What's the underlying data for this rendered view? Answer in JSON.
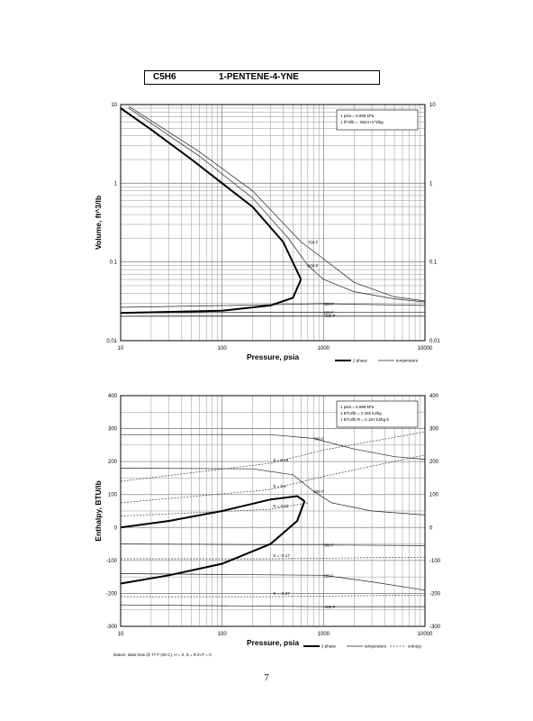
{
  "header": {
    "formula": "C5H6",
    "compound": "1-PENTENE-4-YNE"
  },
  "page_number": "7",
  "chart_data": [
    {
      "type": "line",
      "xscale": "log",
      "yscale": "log",
      "xlim": [
        10,
        10000
      ],
      "ylim": [
        0.01,
        10
      ],
      "xlabel": "Pressure,  psia",
      "ylabel": "Volume, ft^3/lb",
      "xticks": [
        "10",
        "100",
        "1000",
        "10000"
      ],
      "yticks": [
        "0.01",
        "0.1",
        "1",
        "10"
      ],
      "grid": true,
      "notes": [
        "1 psia  =  6.895 kPa",
        "1 ft^3/lb  =  .0624 m^3/kg"
      ],
      "legend": [
        "2 phase",
        "temperature"
      ],
      "dome": {
        "name": "2 phase",
        "upper": [
          [
            10,
            9.0
          ],
          [
            20,
            4.8
          ],
          [
            50,
            2.0
          ],
          [
            100,
            1.0
          ],
          [
            200,
            0.5
          ],
          [
            400,
            0.18
          ],
          [
            600,
            0.06
          ]
        ],
        "lower": [
          [
            10,
            0.0225
          ],
          [
            100,
            0.024
          ],
          [
            300,
            0.028
          ],
          [
            500,
            0.035
          ],
          [
            600,
            0.06
          ]
        ]
      },
      "isotherms": [
        {
          "label": "700 F",
          "points": [
            [
              12,
              9.5
            ],
            [
              60,
              2.5
            ],
            [
              200,
              0.8
            ],
            [
              600,
              0.18
            ],
            [
              1000,
              0.11
            ],
            [
              2000,
              0.055
            ],
            [
              5000,
              0.036
            ],
            [
              10000,
              0.032
            ]
          ]
        },
        {
          "label": "500 F",
          "points": [
            [
              12,
              9.0
            ],
            [
              60,
              2.2
            ],
            [
              200,
              0.65
            ],
            [
              450,
              0.2
            ],
            [
              700,
              0.09
            ],
            [
              1000,
              0.06
            ],
            [
              2000,
              0.042
            ],
            [
              5000,
              0.034
            ],
            [
              10000,
              0.031
            ]
          ]
        },
        {
          "label": "300 F",
          "points": [
            [
              10,
              0.0265
            ],
            [
              1000,
              0.0295
            ],
            [
              10000,
              0.028
            ]
          ]
        },
        {
          "label": "100 F",
          "points": [
            [
              10,
              0.0225
            ],
            [
              1000,
              0.023
            ],
            [
              10000,
              0.0228
            ]
          ]
        },
        {
          "label": "-100 F",
          "points": [
            [
              10,
              0.0205
            ],
            [
              1000,
              0.0208
            ],
            [
              10000,
              0.0208
            ]
          ]
        }
      ]
    },
    {
      "type": "line",
      "xscale": "log",
      "xlim": [
        10,
        10000
      ],
      "ylim": [
        -300,
        400
      ],
      "xlabel": "Pressure,  psia",
      "ylabel": "Enthalpy, BTU/lb",
      "xticks": [
        "10",
        "100",
        "1000",
        "10000"
      ],
      "yticks": [
        "400",
        "300",
        "200",
        "100",
        "0",
        "-100",
        "-200",
        "-300"
      ],
      "grid": true,
      "notes": [
        "1 psia  =  6.895 kPa",
        "1 BTU/lb  =  2.326 kJ/kg",
        "1 BTU/lb R  =  4.187 kJ/kg K"
      ],
      "legend": [
        "2 phase",
        "temperature",
        "entropy"
      ],
      "footnote": "Datum: Ideal Gas @ 77 F (25 C),  H = 0,  S = R ln P = 0",
      "dome": {
        "name": "2 phase",
        "upper": [
          [
            10,
            0
          ],
          [
            30,
            20
          ],
          [
            100,
            50
          ],
          [
            300,
            85
          ],
          [
            550,
            95
          ],
          [
            650,
            80
          ]
        ],
        "lower": [
          [
            10,
            -170
          ],
          [
            30,
            -145
          ],
          [
            100,
            -110
          ],
          [
            300,
            -50
          ],
          [
            550,
            20
          ],
          [
            650,
            80
          ]
        ]
      },
      "isotherms": [
        {
          "label": "700 F",
          "points": [
            [
              10,
              282
            ],
            [
              300,
              282
            ],
            [
              800,
              270
            ],
            [
              2000,
              238
            ],
            [
              5000,
              215
            ],
            [
              10000,
              207
            ]
          ]
        },
        {
          "label": "500 F",
          "points": [
            [
              10,
              180
            ],
            [
              200,
              178
            ],
            [
              500,
              160
            ],
            [
              800,
              110
            ],
            [
              1200,
              75
            ],
            [
              3000,
              50
            ],
            [
              10000,
              38
            ]
          ]
        },
        {
          "label": "300 F",
          "points": [
            [
              10,
              -50
            ],
            [
              1000,
              -53
            ],
            [
              10000,
              -55
            ]
          ]
        },
        {
          "label": "100 F",
          "points": [
            [
              10,
              -140
            ],
            [
              1000,
              -145
            ],
            [
              3000,
              -165
            ],
            [
              10000,
              -190
            ]
          ]
        },
        {
          "label": "-100 F",
          "points": [
            [
              10,
              -235
            ],
            [
              1000,
              -240
            ],
            [
              10000,
              -240
            ]
          ]
        }
      ],
      "entropy": [
        {
          "label": "S = 0.18",
          "points": [
            [
              10,
              140
            ],
            [
              300,
              195
            ],
            [
              1000,
              235
            ],
            [
              10000,
              290
            ]
          ]
        },
        {
          "label": "S = 0.1",
          "points": [
            [
              10,
              75
            ],
            [
              300,
              115
            ],
            [
              1000,
              155
            ],
            [
              10000,
              220
            ]
          ]
        },
        {
          "label": "S = 0.02",
          "points": [
            [
              10,
              35
            ],
            [
              300,
              55
            ],
            [
              700,
              75
            ]
          ]
        },
        {
          "label": "S = -0.17",
          "points": [
            [
              10,
              -95
            ],
            [
              300,
              -95
            ],
            [
              10000,
              -90
            ]
          ]
        },
        {
          "label": "S = -0.27",
          "points": [
            [
              10,
              -210
            ],
            [
              300,
              -210
            ],
            [
              10000,
              -205
            ]
          ]
        }
      ]
    }
  ]
}
